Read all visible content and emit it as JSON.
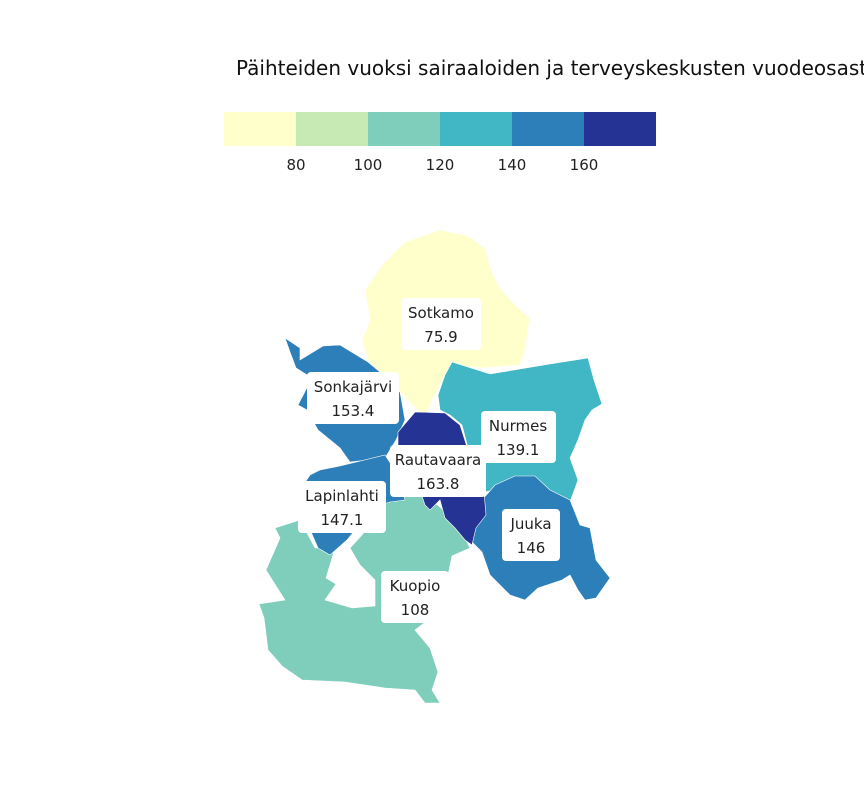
{
  "title": "Päihteiden vuoksi sairaaloiden ja terveyskeskusten vuodeosastoilla",
  "legend": {
    "colors": [
      "#ffffcc",
      "#c7e9b4",
      "#7fcdbb",
      "#41b6c4",
      "#2c7fb8",
      "#253494"
    ],
    "breaks": [
      80,
      100,
      120,
      140,
      160
    ],
    "tick_labels": [
      "80",
      "100",
      "120",
      "140",
      "160"
    ]
  },
  "regions": [
    {
      "name": "Sotkamo",
      "value": 75.9,
      "value_label": "75.9",
      "color": "#ffffcc"
    },
    {
      "name": "Sonkajärvi",
      "value": 153.4,
      "value_label": "153.4",
      "color": "#2c7fb8"
    },
    {
      "name": "Nurmes",
      "value": 139.1,
      "value_label": "139.1",
      "color": "#41b6c4"
    },
    {
      "name": "Rautavaara",
      "value": 163.8,
      "value_label": "163.8",
      "color": "#253494"
    },
    {
      "name": "Lapinlahti",
      "value": 147.1,
      "value_label": "147.1",
      "color": "#2c7fb8"
    },
    {
      "name": "Juuka",
      "value": 146,
      "value_label": "146",
      "color": "#2c7fb8"
    },
    {
      "name": "Kuopio",
      "value": 108,
      "value_label": "108",
      "color": "#7fcdbb"
    }
  ]
}
